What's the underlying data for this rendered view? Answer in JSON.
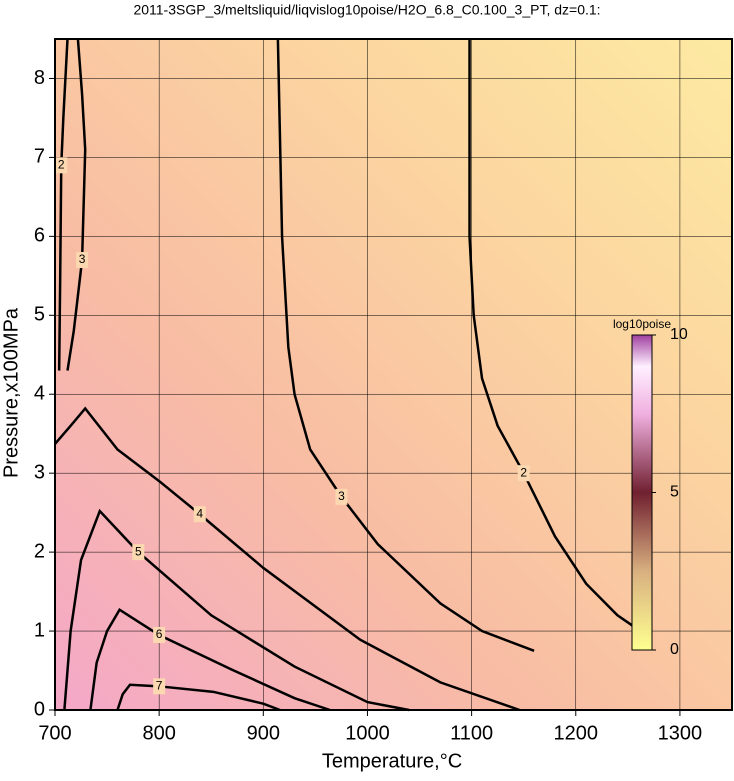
{
  "chart_data": {
    "type": "contour",
    "title": "2011-3SGP_3/meltsliquid/liqvislog10poise/H2O_6.8_C0.100_3_PT, dz=0.1:",
    "x_label": "Temperature,°C",
    "y_label": "Pressure,x100MPa",
    "xlim": [
      700,
      1350
    ],
    "ylim": [
      0,
      8.5
    ],
    "xticks": [
      700,
      800,
      900,
      1000,
      1100,
      1200,
      1300
    ],
    "yticks": [
      0,
      1,
      2,
      3,
      4,
      5,
      6,
      7,
      8
    ],
    "grid": true,
    "contours": [
      {
        "level": 2,
        "x": [
          1098,
          1098,
          1102,
          1110,
          1125,
          1150,
          1180,
          1210,
          1240,
          1262
        ],
        "y": [
          8.5,
          6,
          5,
          4.2,
          3.6,
          3.0,
          2.2,
          1.6,
          1.2,
          1.0
        ]
      },
      {
        "level": 3,
        "x": [
          914,
          918,
          924,
          930,
          945,
          975,
          1010,
          1070,
          1110,
          1160
        ],
        "y": [
          8.5,
          6,
          4.6,
          4.0,
          3.3,
          2.7,
          2.1,
          1.35,
          1.0,
          0.75
        ]
      },
      {
        "level": 3,
        "x": [
          722,
          726,
          729,
          726,
          718,
          712
        ],
        "y": [
          8.5,
          7.8,
          7.1,
          5.7,
          4.8,
          4.3
        ]
      },
      {
        "level": 2,
        "x": [
          712,
          708,
          706,
          705,
          704
        ],
        "y": [
          8.5,
          7.5,
          6.9,
          5.5,
          4.3
        ]
      },
      {
        "level": 4,
        "x": [
          700,
          715,
          729,
          760,
          800,
          839,
          900,
          993,
          1070,
          1146
        ],
        "y": [
          3.37,
          3.6,
          3.82,
          3.3,
          2.9,
          2.48,
          1.8,
          0.89,
          0.35,
          0
        ]
      },
      {
        "level": 5,
        "x": [
          709,
          715,
          725,
          743,
          780,
          850,
          930,
          1000,
          1040
        ],
        "y": [
          0,
          1.0,
          1.9,
          2.52,
          2.0,
          1.2,
          0.55,
          0.1,
          0
        ]
      },
      {
        "level": 6,
        "x": [
          734,
          740,
          750,
          762,
          800,
          870,
          930,
          964
        ],
        "y": [
          0,
          0.6,
          1.0,
          1.27,
          0.95,
          0.51,
          0.15,
          0
        ]
      },
      {
        "level": 7,
        "x": [
          760,
          765,
          772,
          800,
          852,
          900,
          916
        ],
        "y": [
          0,
          0.2,
          0.32,
          0.3,
          0.23,
          0.08,
          0
        ]
      }
    ],
    "colorbar": {
      "label": "log10poise",
      "lim": [
        0,
        10
      ],
      "ticks": [
        0,
        5,
        10
      ]
    }
  }
}
